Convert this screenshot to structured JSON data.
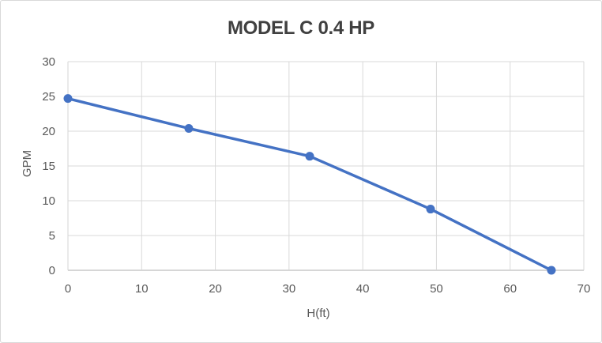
{
  "chart_data": {
    "type": "line",
    "title": "MODEL C 0.4 HP",
    "xlabel": "H(ft)",
    "ylabel": "GPM",
    "series": [
      {
        "name": "MODEL C 0.4 HP",
        "x": [
          0,
          16.4,
          32.8,
          49.2,
          65.6
        ],
        "y": [
          24.7,
          20.4,
          16.4,
          8.8,
          0
        ]
      }
    ],
    "xlim": [
      0,
      70
    ],
    "ylim": [
      0,
      30
    ],
    "x_ticks": [
      0,
      10,
      20,
      30,
      40,
      50,
      60,
      70
    ],
    "y_ticks": [
      0,
      5,
      10,
      15,
      20,
      25,
      30
    ],
    "grid": true,
    "legend": false,
    "marker": "circle",
    "colors": {
      "line": "#4472C4",
      "marker": "#4472C4",
      "gridline": "#D9D9D9",
      "axis_line": "#D6D6D6",
      "title_text": "#404040",
      "tick_text": "#595959",
      "background": "#FFFFFF",
      "border": "#D9D9D9"
    }
  }
}
